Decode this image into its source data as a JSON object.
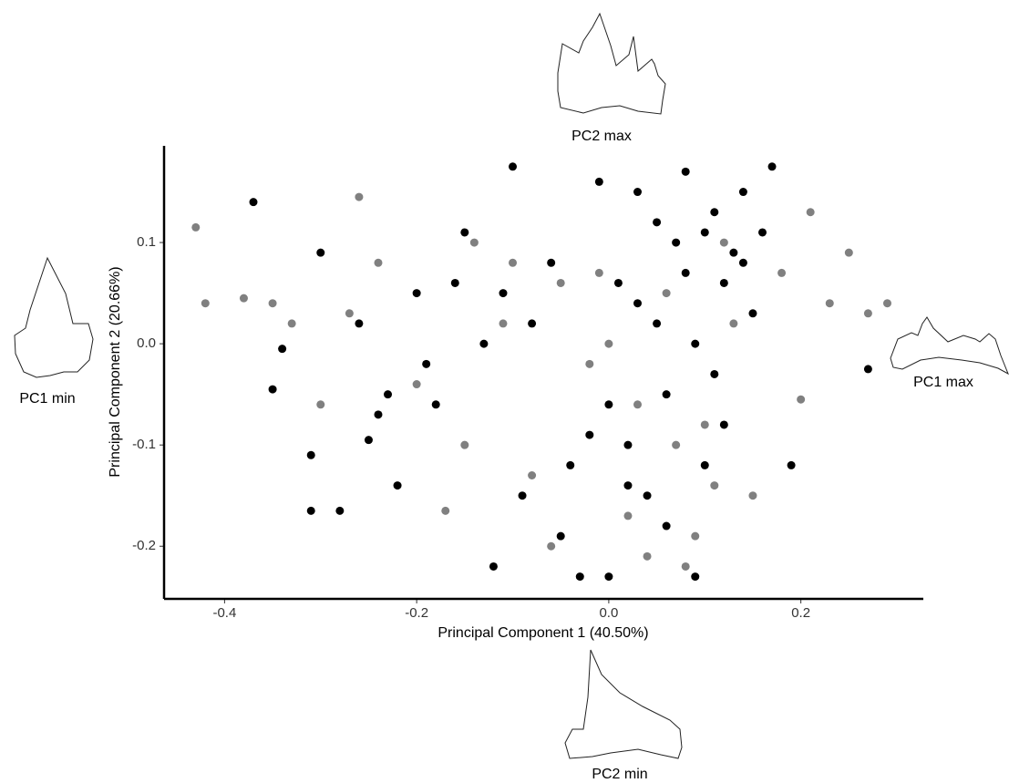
{
  "chart_data": {
    "type": "scatter",
    "xlabel": "Principal Component 1 (40.50%)",
    "ylabel": "Principal Component 2 (20.66%)",
    "xlim": [
      -0.463,
      0.3275
    ],
    "ylim": [
      -0.252,
      0.1955
    ],
    "xticks": [
      -0.4,
      -0.2,
      {
        "value": 0,
        "label": "0.0"
      },
      0.2
    ],
    "yticks": [
      -0.2,
      -0.1,
      {
        "value": 0,
        "label": "0.0"
      },
      0.1
    ],
    "annotations": [
      "PC2 max",
      "PC1 min",
      "PC1 max",
      "PC2 min"
    ],
    "series": [
      {
        "color": "#808080",
        "x": [
          -0.43,
          -0.42,
          -0.38,
          -0.35,
          -0.33,
          -0.3,
          -0.27,
          -0.24,
          -0.2,
          -0.17,
          -0.14,
          -0.11,
          -0.08,
          -0.05,
          -0.02,
          0.0,
          0.02,
          0.04,
          0.06,
          0.08,
          0.1,
          0.12,
          0.15,
          0.18,
          0.21,
          0.23,
          0.25,
          0.27,
          0.29,
          -0.15,
          -0.1,
          -0.06,
          -0.01,
          0.03,
          0.07,
          0.09,
          0.13,
          0.2,
          -0.26,
          0.11
        ],
        "values": [
          0.115,
          0.04,
          0.045,
          0.04,
          0.02,
          -0.06,
          0.03,
          0.08,
          -0.04,
          -0.165,
          0.1,
          0.02,
          -0.13,
          0.06,
          -0.02,
          0.0,
          -0.17,
          -0.21,
          0.05,
          -0.22,
          -0.08,
          0.1,
          -0.15,
          0.07,
          0.13,
          0.04,
          0.09,
          0.03,
          0.04,
          -0.1,
          0.08,
          -0.2,
          0.07,
          -0.06,
          -0.1,
          -0.19,
          0.02,
          -0.055,
          0.145,
          -0.14
        ]
      },
      {
        "color": "#000000",
        "x": [
          -0.37,
          -0.35,
          -0.34,
          -0.31,
          -0.31,
          -0.28,
          -0.25,
          -0.22,
          -0.2,
          -0.18,
          -0.15,
          -0.12,
          -0.1,
          -0.09,
          -0.08,
          -0.05,
          -0.03,
          -0.01,
          0.0,
          0.01,
          0.02,
          0.03,
          0.04,
          0.05,
          0.06,
          0.07,
          0.08,
          0.09,
          0.09,
          0.1,
          0.11,
          0.12,
          0.13,
          0.14,
          0.15,
          0.17,
          0.19,
          0.27,
          -0.3,
          -0.26,
          -0.23,
          -0.19,
          -0.16,
          -0.13,
          -0.06,
          -0.04,
          0.0,
          0.03,
          0.06,
          0.08,
          0.11,
          0.14,
          0.16,
          -0.24,
          -0.11,
          0.02,
          0.05,
          0.1,
          -0.02,
          0.12
        ],
        "values": [
          0.14,
          -0.045,
          -0.005,
          -0.11,
          -0.165,
          -0.165,
          -0.095,
          -0.14,
          0.05,
          -0.06,
          0.11,
          -0.22,
          0.175,
          -0.15,
          0.02,
          -0.19,
          -0.23,
          0.16,
          -0.23,
          0.06,
          -0.1,
          0.15,
          -0.15,
          0.12,
          -0.05,
          0.1,
          0.17,
          -0.23,
          0.0,
          -0.12,
          0.13,
          -0.08,
          0.09,
          0.15,
          0.03,
          0.175,
          -0.12,
          -0.025,
          0.09,
          0.02,
          -0.05,
          -0.02,
          0.06,
          0.0,
          0.08,
          -0.12,
          -0.06,
          0.04,
          -0.18,
          0.07,
          -0.03,
          0.08,
          0.11,
          -0.07,
          0.05,
          -0.14,
          0.02,
          0.11,
          -0.09,
          0.06
        ]
      }
    ]
  }
}
